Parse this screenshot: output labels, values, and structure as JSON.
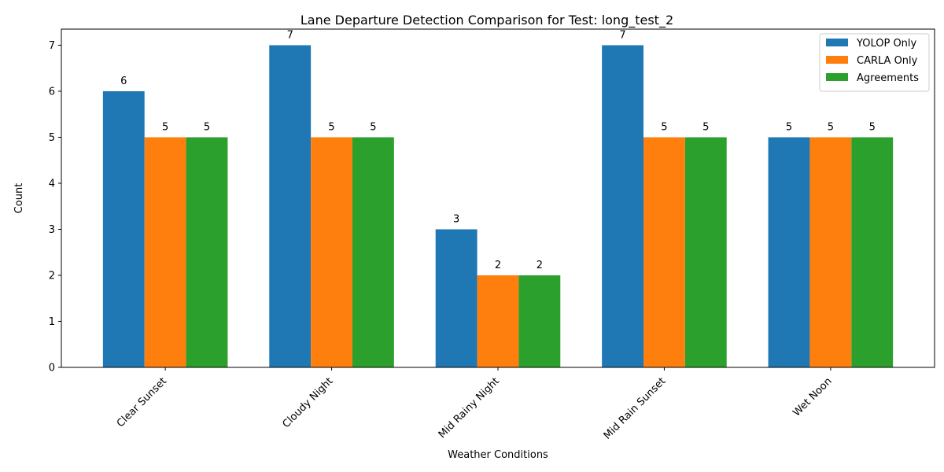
{
  "chart_data": {
    "type": "bar",
    "title": "Lane Departure Detection Comparison for Test: long_test_2",
    "xlabel": "Weather Conditions",
    "ylabel": "Count",
    "categories": [
      "Clear Sunset",
      "Cloudy Night",
      "Mid Rainy Night",
      "Mid Rain Sunset",
      "Wet Noon"
    ],
    "series": [
      {
        "name": "YOLOP Only",
        "color": "#1f77b4",
        "values": [
          6,
          7,
          3,
          7,
          5
        ]
      },
      {
        "name": "CARLA Only",
        "color": "#ff7f0e",
        "values": [
          5,
          5,
          2,
          5,
          5
        ]
      },
      {
        "name": "Agreements",
        "color": "#2ca02c",
        "values": [
          5,
          5,
          2,
          5,
          5
        ]
      }
    ],
    "ylim": [
      0,
      7.35
    ],
    "yticks": [
      0,
      1,
      2,
      3,
      4,
      5,
      6,
      7
    ],
    "grid": false,
    "legend_position": "top-right"
  }
}
